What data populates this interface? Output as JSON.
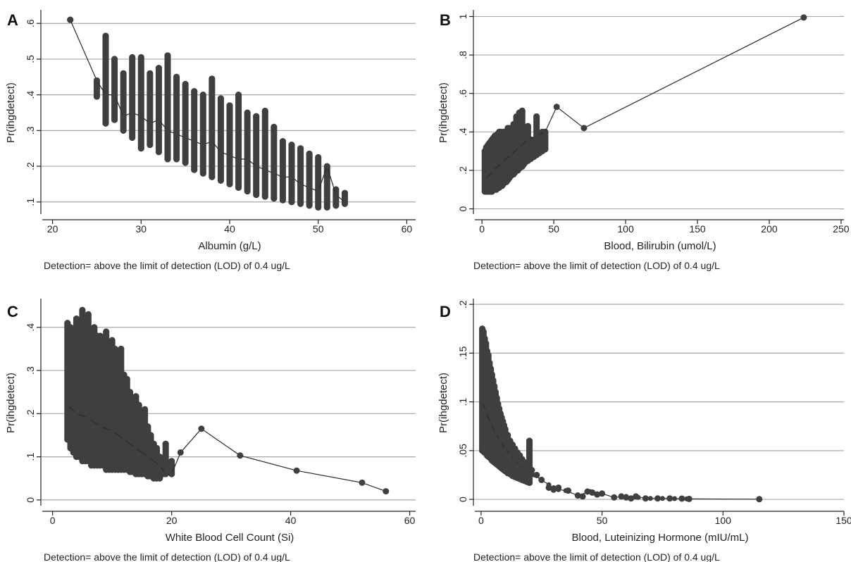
{
  "chart_data": [
    {
      "panel": "A",
      "type": "scatter",
      "xlabel": "Albumin (g/L)",
      "ylabel": "Pr(ihgdetect)",
      "note": "Detection= above the limit of detection (LOD) of 0.4 ug/L",
      "xlim": [
        19,
        61
      ],
      "ylim": [
        0.07,
        0.63
      ],
      "xticks": [
        20,
        30,
        40,
        50,
        60
      ],
      "xtick_labels": [
        "20",
        "30",
        "40",
        "50",
        "60"
      ],
      "yticks": [
        0.1,
        0.2,
        0.3,
        0.4,
        0.5,
        0.6
      ],
      "ytick_labels": [
        ".1",
        ".2",
        ".3",
        ".4",
        ".5",
        ".6"
      ],
      "grid": true,
      "vertical_ranges": [
        [
          22,
          0.61,
          0.61
        ],
        [
          25,
          0.395,
          0.44
        ],
        [
          26,
          0.32,
          0.565
        ],
        [
          27,
          0.33,
          0.5
        ],
        [
          28,
          0.3,
          0.46
        ],
        [
          29,
          0.28,
          0.505
        ],
        [
          30,
          0.25,
          0.505
        ],
        [
          31,
          0.26,
          0.46
        ],
        [
          32,
          0.24,
          0.475
        ],
        [
          33,
          0.22,
          0.51
        ],
        [
          34,
          0.22,
          0.45
        ],
        [
          35,
          0.21,
          0.43
        ],
        [
          36,
          0.19,
          0.41
        ],
        [
          37,
          0.18,
          0.4
        ],
        [
          38,
          0.17,
          0.445
        ],
        [
          39,
          0.16,
          0.39
        ],
        [
          40,
          0.15,
          0.37
        ],
        [
          41,
          0.14,
          0.4
        ],
        [
          42,
          0.13,
          0.35
        ],
        [
          43,
          0.12,
          0.34
        ],
        [
          44,
          0.115,
          0.355
        ],
        [
          45,
          0.11,
          0.31
        ],
        [
          46,
          0.105,
          0.27
        ],
        [
          47,
          0.1,
          0.26
        ],
        [
          48,
          0.095,
          0.25
        ],
        [
          49,
          0.09,
          0.235
        ],
        [
          50,
          0.085,
          0.225
        ],
        [
          51,
          0.085,
          0.2
        ],
        [
          52,
          0.09,
          0.135
        ],
        [
          53,
          0.095,
          0.125
        ]
      ],
      "mean_line": [
        [
          22,
          0.61
        ],
        [
          25,
          0.44
        ],
        [
          26,
          0.4
        ],
        [
          27,
          0.4
        ],
        [
          28,
          0.34
        ],
        [
          29,
          0.35
        ],
        [
          30,
          0.34
        ],
        [
          31,
          0.32
        ],
        [
          32,
          0.33
        ],
        [
          33,
          0.3
        ],
        [
          34,
          0.29
        ],
        [
          35,
          0.28
        ],
        [
          36,
          0.27
        ],
        [
          37,
          0.26
        ],
        [
          38,
          0.27
        ],
        [
          39,
          0.24
        ],
        [
          40,
          0.23
        ],
        [
          41,
          0.22
        ],
        [
          42,
          0.22
        ],
        [
          43,
          0.2
        ],
        [
          44,
          0.19
        ],
        [
          45,
          0.18
        ],
        [
          46,
          0.17
        ],
        [
          47,
          0.17
        ],
        [
          48,
          0.15
        ],
        [
          49,
          0.14
        ],
        [
          50,
          0.13
        ],
        [
          51,
          0.2
        ],
        [
          52,
          0.12
        ],
        [
          53,
          0.1
        ]
      ]
    },
    {
      "panel": "B",
      "type": "scatter",
      "xlabel": "Blood, Bilirubin (umol/L)",
      "ylabel": "Pr(ihgdetect)",
      "note": "Detection= above the limit of detection (LOD) of 0.4 ug/L",
      "xlim": [
        -4,
        252
      ],
      "ylim": [
        -0.02,
        1.02
      ],
      "xticks": [
        0,
        50,
        100,
        150,
        200,
        250
      ],
      "xtick_labels": [
        "0",
        "50",
        "100",
        "150",
        "200",
        "250"
      ],
      "yticks": [
        0,
        0.2,
        0.4,
        0.6,
        0.8,
        1
      ],
      "ytick_labels": [
        "0",
        ".2",
        ".4",
        ".6",
        ".8",
        "1"
      ],
      "grid": true,
      "vertical_ranges": [
        [
          2,
          0.09,
          0.3
        ],
        [
          3,
          0.09,
          0.32
        ],
        [
          4,
          0.09,
          0.33
        ],
        [
          5,
          0.09,
          0.34
        ],
        [
          6,
          0.09,
          0.35
        ],
        [
          7,
          0.09,
          0.36
        ],
        [
          8,
          0.1,
          0.37
        ],
        [
          9,
          0.1,
          0.38
        ],
        [
          10,
          0.1,
          0.38
        ],
        [
          11,
          0.11,
          0.39
        ],
        [
          12,
          0.11,
          0.4
        ],
        [
          13,
          0.12,
          0.4
        ],
        [
          14,
          0.12,
          0.39
        ],
        [
          15,
          0.13,
          0.4
        ],
        [
          16,
          0.14,
          0.4
        ],
        [
          17,
          0.14,
          0.38
        ],
        [
          18,
          0.15,
          0.42
        ],
        [
          19,
          0.16,
          0.4
        ],
        [
          20,
          0.17,
          0.42
        ],
        [
          21,
          0.18,
          0.4
        ],
        [
          22,
          0.18,
          0.44
        ],
        [
          23,
          0.19,
          0.4
        ],
        [
          24,
          0.2,
          0.48
        ],
        [
          25,
          0.2,
          0.42
        ],
        [
          26,
          0.21,
          0.5
        ],
        [
          27,
          0.22,
          0.45
        ],
        [
          28,
          0.22,
          0.51
        ],
        [
          29,
          0.23,
          0.42
        ],
        [
          30,
          0.24,
          0.4
        ],
        [
          32,
          0.25,
          0.43
        ],
        [
          34,
          0.26,
          0.36
        ],
        [
          36,
          0.27,
          0.34
        ],
        [
          38,
          0.28,
          0.48
        ],
        [
          40,
          0.29,
          0.36
        ],
        [
          42,
          0.3,
          0.4
        ],
        [
          44,
          0.31,
          0.4
        ]
      ],
      "mean_line": [
        [
          2,
          0.15
        ],
        [
          8,
          0.2
        ],
        [
          14,
          0.24
        ],
        [
          20,
          0.28
        ],
        [
          26,
          0.32
        ],
        [
          32,
          0.36
        ],
        [
          38,
          0.38
        ],
        [
          44,
          0.4
        ],
        [
          52,
          0.53
        ],
        [
          71,
          0.42
        ],
        [
          224,
          0.995
        ]
      ],
      "outliers": [
        [
          52,
          0.53
        ],
        [
          71,
          0.42
        ],
        [
          224,
          0.995
        ]
      ]
    },
    {
      "panel": "C",
      "type": "scatter",
      "xlabel": "White Blood Cell Count (Si)",
      "ylabel": "Pr(ihgdetect)",
      "note": "Detection= above the limit of detection (LOD) of 0.4 ug/L",
      "xlim": [
        -1.5,
        61
      ],
      "ylim": [
        -0.01,
        0.46
      ],
      "xticks": [
        0,
        20,
        40,
        60
      ],
      "xtick_labels": [
        "0",
        "20",
        "40",
        "60"
      ],
      "yticks": [
        0,
        0.1,
        0.2,
        0.3,
        0.4
      ],
      "ytick_labels": [
        "0",
        ".1",
        ".2",
        ".3",
        ".4"
      ],
      "grid": true,
      "vertical_ranges": [
        [
          2.5,
          0.14,
          0.41
        ],
        [
          3,
          0.12,
          0.4
        ],
        [
          3.5,
          0.11,
          0.39
        ],
        [
          4,
          0.1,
          0.42
        ],
        [
          4.5,
          0.1,
          0.38
        ],
        [
          5,
          0.09,
          0.44
        ],
        [
          5.5,
          0.09,
          0.4
        ],
        [
          6,
          0.09,
          0.43
        ],
        [
          6.5,
          0.08,
          0.39
        ],
        [
          7,
          0.08,
          0.4
        ],
        [
          7.5,
          0.08,
          0.38
        ],
        [
          8,
          0.08,
          0.38
        ],
        [
          8.5,
          0.08,
          0.37
        ],
        [
          9,
          0.07,
          0.39
        ],
        [
          9.5,
          0.07,
          0.36
        ],
        [
          10,
          0.07,
          0.37
        ],
        [
          10.5,
          0.07,
          0.35
        ],
        [
          11,
          0.07,
          0.33
        ],
        [
          11.5,
          0.07,
          0.35
        ],
        [
          12,
          0.07,
          0.29
        ],
        [
          12.5,
          0.07,
          0.28
        ],
        [
          13,
          0.065,
          0.25
        ],
        [
          13.5,
          0.065,
          0.23
        ],
        [
          14,
          0.06,
          0.24
        ],
        [
          14.5,
          0.06,
          0.22
        ],
        [
          15,
          0.06,
          0.19
        ],
        [
          15.5,
          0.06,
          0.21
        ],
        [
          16,
          0.055,
          0.17
        ],
        [
          16.5,
          0.055,
          0.15
        ],
        [
          17,
          0.05,
          0.13
        ],
        [
          17.5,
          0.05,
          0.12
        ],
        [
          18,
          0.05,
          0.1
        ],
        [
          18.5,
          0.06,
          0.09
        ],
        [
          19,
          0.06,
          0.13
        ],
        [
          20,
          0.06,
          0.09
        ]
      ],
      "mean_line": [
        [
          2.5,
          0.22
        ],
        [
          4,
          0.2
        ],
        [
          6,
          0.19
        ],
        [
          8,
          0.17
        ],
        [
          10,
          0.16
        ],
        [
          12,
          0.14
        ],
        [
          14,
          0.12
        ],
        [
          16,
          0.1
        ],
        [
          18,
          0.08
        ],
        [
          19,
          0.06
        ],
        [
          20,
          0.06
        ],
        [
          21.5,
          0.11
        ],
        [
          25,
          0.165
        ],
        [
          31.5,
          0.103
        ],
        [
          41,
          0.068
        ],
        [
          52,
          0.04
        ],
        [
          56,
          0.02
        ]
      ],
      "outliers": [
        [
          21.5,
          0.11
        ],
        [
          25,
          0.165
        ],
        [
          31.5,
          0.103
        ],
        [
          41,
          0.068
        ],
        [
          52,
          0.04
        ],
        [
          56,
          0.02
        ]
      ]
    },
    {
      "panel": "D",
      "type": "scatter",
      "xlabel": "Blood, Luteinizing Hormone (mIU/mL)",
      "ylabel": "Pr(ihgdetect)",
      "note": "Detection= above the limit of detection (LOD) of 0.4 ug/L",
      "xlim": [
        -2,
        150
      ],
      "ylim": [
        -0.005,
        0.203
      ],
      "xticks": [
        0,
        50,
        100,
        150
      ],
      "xtick_labels": [
        "0",
        "50",
        "100",
        "150"
      ],
      "yticks": [
        0,
        0.05,
        0.1,
        0.15,
        0.2
      ],
      "ytick_labels": [
        "0",
        ".05",
        ".1",
        ".15",
        ".2"
      ],
      "grid": true,
      "vertical_ranges": [
        [
          0.5,
          0.05,
          0.175
        ],
        [
          1,
          0.049,
          0.172
        ],
        [
          1.5,
          0.048,
          0.165
        ],
        [
          2,
          0.047,
          0.16
        ],
        [
          2.5,
          0.045,
          0.152
        ],
        [
          3,
          0.044,
          0.148
        ],
        [
          3.5,
          0.043,
          0.14
        ],
        [
          4,
          0.042,
          0.134
        ],
        [
          4.5,
          0.04,
          0.128
        ],
        [
          5,
          0.039,
          0.122
        ],
        [
          5.5,
          0.038,
          0.116
        ],
        [
          6,
          0.037,
          0.11
        ],
        [
          6.5,
          0.036,
          0.104
        ],
        [
          7,
          0.035,
          0.098
        ],
        [
          7.5,
          0.034,
          0.093
        ],
        [
          8,
          0.033,
          0.088
        ],
        [
          8.5,
          0.032,
          0.084
        ],
        [
          9,
          0.031,
          0.08
        ],
        [
          9.5,
          0.03,
          0.076
        ],
        [
          10,
          0.029,
          0.072
        ],
        [
          11,
          0.027,
          0.066
        ],
        [
          12,
          0.026,
          0.06
        ],
        [
          13,
          0.024,
          0.056
        ],
        [
          14,
          0.023,
          0.052
        ],
        [
          15,
          0.022,
          0.048
        ],
        [
          16,
          0.021,
          0.045
        ],
        [
          17,
          0.02,
          0.041
        ],
        [
          18,
          0.019,
          0.038
        ],
        [
          19,
          0.018,
          0.035
        ],
        [
          20,
          0.017,
          0.06
        ]
      ],
      "mean_line": [
        [
          0.5,
          0.1
        ],
        [
          2,
          0.09
        ],
        [
          4,
          0.078
        ],
        [
          6,
          0.068
        ],
        [
          8,
          0.06
        ],
        [
          10,
          0.052
        ],
        [
          12,
          0.045
        ],
        [
          14,
          0.04
        ],
        [
          16,
          0.036
        ],
        [
          18,
          0.032
        ],
        [
          20,
          0.03
        ],
        [
          22,
          0.025
        ],
        [
          25,
          0.02
        ],
        [
          28,
          0.015
        ],
        [
          30,
          0.012
        ],
        [
          32,
          0.01
        ],
        [
          35,
          0.009
        ],
        [
          40,
          0.004
        ],
        [
          45,
          0.008
        ],
        [
          50,
          0.006
        ],
        [
          55,
          0.002
        ],
        [
          60,
          0.003
        ],
        [
          65,
          0.002
        ],
        [
          70,
          0.001
        ],
        [
          75,
          0.001
        ],
        [
          80,
          0.0008
        ],
        [
          85,
          0.0005
        ],
        [
          115,
          0.0002
        ]
      ],
      "outliers": [
        [
          21,
          0.03
        ],
        [
          23,
          0.025
        ],
        [
          25,
          0.02
        ],
        [
          28,
          0.012
        ],
        [
          30,
          0.01
        ],
        [
          32,
          0.012
        ],
        [
          36,
          0.009
        ],
        [
          40,
          0.004
        ],
        [
          42,
          0.003
        ],
        [
          44,
          0.008
        ],
        [
          46,
          0.007
        ],
        [
          48,
          0.005
        ],
        [
          50,
          0.006
        ],
        [
          55,
          0.002
        ],
        [
          58,
          0.003
        ],
        [
          60,
          0.002
        ],
        [
          62,
          0.001
        ],
        [
          64,
          0.003
        ],
        [
          68,
          0.001
        ],
        [
          73,
          0.001
        ],
        [
          78,
          0.001
        ],
        [
          83,
          0.0008
        ],
        [
          86,
          0.0005
        ],
        [
          115,
          0.0002
        ]
      ]
    }
  ]
}
